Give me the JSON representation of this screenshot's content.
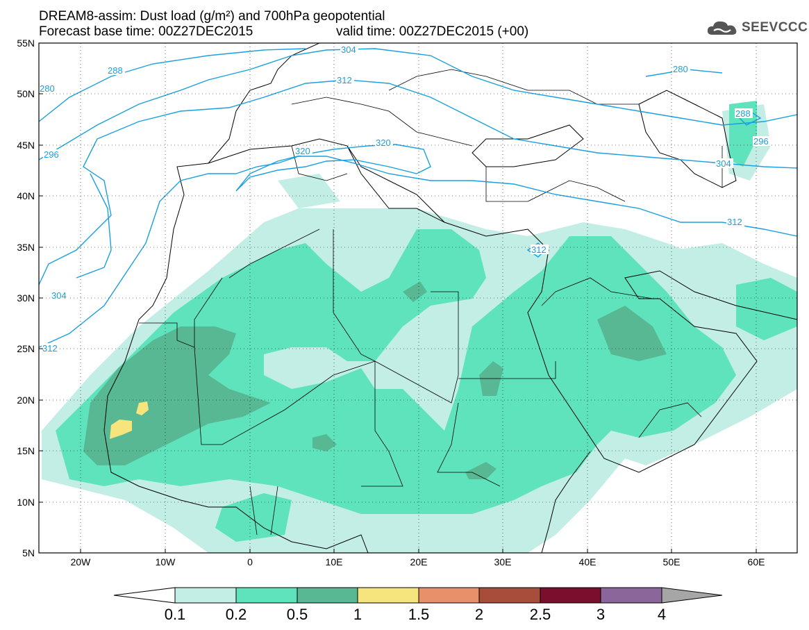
{
  "header": {
    "line1": "DREAM8-assim: Dust load (g/m²) and 700hPa geopotential",
    "line2_left": "Forecast base time: 00Z27DEC2015",
    "line2_right": "valid time: 00Z27DEC2015 (+00)"
  },
  "logo": {
    "icon": "cloud-icon",
    "text": "SEEVCCC"
  },
  "map": {
    "lon_range": [
      -25,
      65
    ],
    "lat_range": [
      5,
      55
    ],
    "lat_ticks": [
      "55N",
      "50N",
      "45N",
      "40N",
      "35N",
      "30N",
      "25N",
      "20N",
      "15N",
      "10N",
      "5N"
    ],
    "lon_ticks": [
      "20W",
      "10W",
      "0",
      "10E",
      "20E",
      "30E",
      "40E",
      "50E",
      "60E"
    ],
    "gridlines": "dotted",
    "contour_color": "#1a9fe0",
    "contour_labels": [
      "280",
      "288",
      "296",
      "304",
      "312",
      "320",
      "304",
      "312",
      "320",
      "280",
      "288",
      "296",
      "304",
      "312",
      "312"
    ]
  },
  "colorbar": {
    "labels": [
      "0.1",
      "0.2",
      "0.5",
      "1",
      "1.5",
      "2",
      "2.5",
      "3",
      "4"
    ],
    "colors": [
      "#ffffff",
      "#c2eee6",
      "#5fe3bc",
      "#58b893",
      "#f6e57c",
      "#e8906a",
      "#a84c3c",
      "#7a0e2c",
      "#8a669a",
      "#a6a6a6"
    ]
  },
  "dust_colors": {
    "light": "#c2eee6",
    "medium": "#5fe3bc",
    "dark": "#58b893",
    "yellow": "#f6e57c"
  }
}
